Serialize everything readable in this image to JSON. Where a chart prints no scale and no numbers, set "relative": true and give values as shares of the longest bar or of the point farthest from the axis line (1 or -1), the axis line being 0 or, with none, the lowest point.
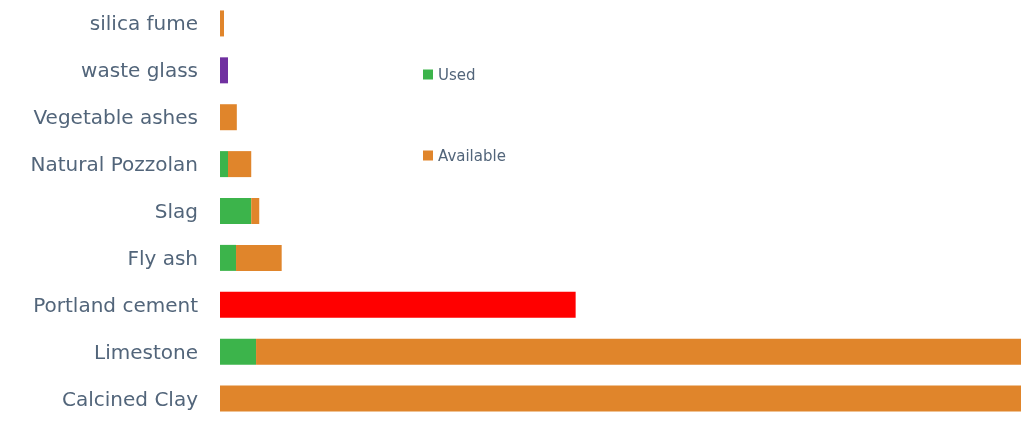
{
  "chart_data": {
    "type": "bar",
    "orientation": "horizontal",
    "stacked": true,
    "relative": true,
    "legend": "top",
    "categories": [
      "silica fume",
      "waste glass",
      "Vegetable ashes",
      "Natural Pozzolan",
      "Slag",
      "Fly ash",
      "Portland cement",
      "Limestone",
      "Calcined Clay"
    ],
    "series": [
      {
        "name": "Used",
        "color": "#3cb44b",
        "values": [
          null,
          null,
          null,
          0.01,
          0.039,
          0.02,
          null,
          0.045,
          null
        ]
      },
      {
        "color": "#7030a0",
        "values": [
          null,
          0.01,
          null,
          null,
          null,
          null,
          null,
          null,
          null
        ]
      },
      {
        "color": "#ff0000",
        "values": [
          null,
          null,
          null,
          null,
          null,
          null,
          0.444,
          null,
          null
        ]
      },
      {
        "name": "Available",
        "color": "#e0852b",
        "values": [
          0.005,
          null,
          0.021,
          0.029,
          0.01,
          0.057,
          null,
          0.955,
          1
        ]
      }
    ]
  }
}
